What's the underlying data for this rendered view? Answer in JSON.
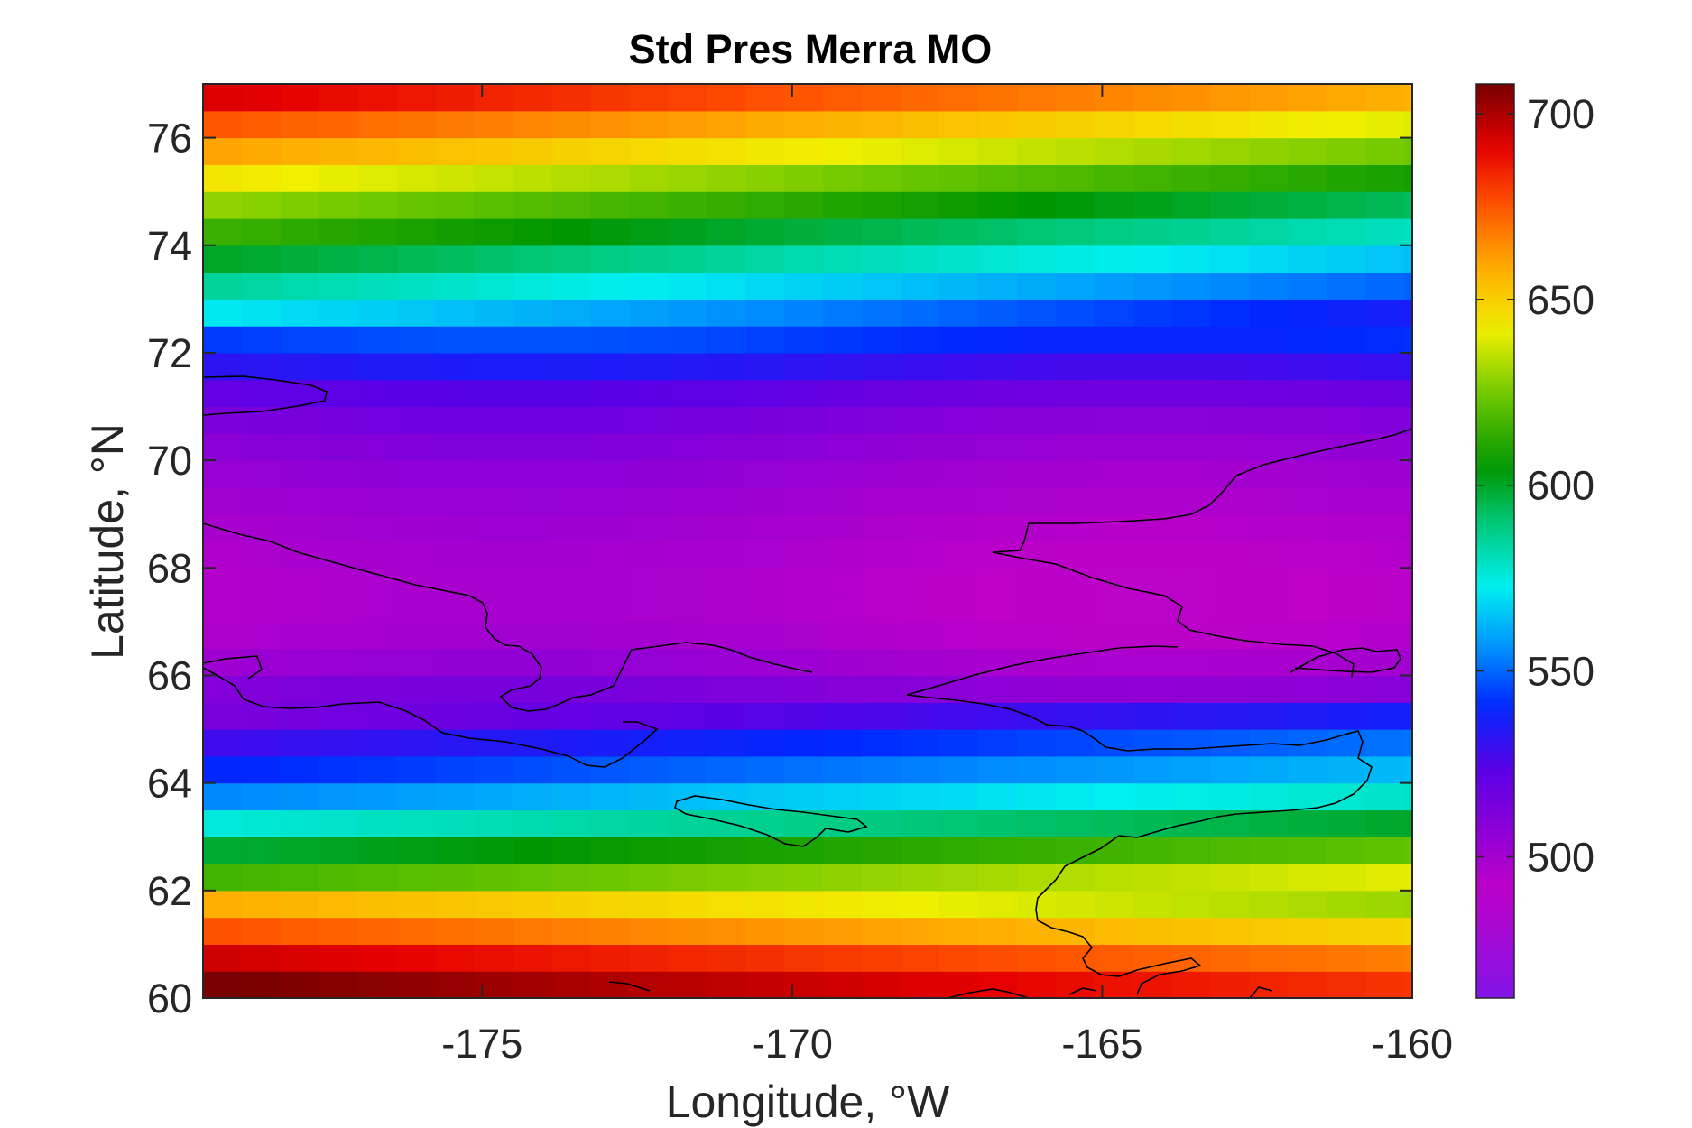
{
  "chart_data": {
    "type": "heatmap",
    "title": "Std Pres Merra MO",
    "xlabel": "Longitude, °W",
    "ylabel": "Latitude, °N",
    "xlim": [
      -179.5,
      -160
    ],
    "ylim": [
      60,
      77
    ],
    "x_ticks": [
      -175,
      -170,
      -165,
      -160
    ],
    "y_ticks": [
      60,
      62,
      64,
      66,
      68,
      70,
      72,
      74,
      76
    ],
    "x_tick_labels": [
      "-175",
      "-170",
      "-165",
      "-160"
    ],
    "y_tick_labels": [
      "60",
      "62",
      "64",
      "66",
      "68",
      "70",
      "72",
      "74",
      "76"
    ],
    "colorbar": {
      "range": [
        462,
        708
      ],
      "ticks": [
        500,
        550,
        600,
        650,
        700
      ],
      "tick_labels": [
        "500",
        "550",
        "600",
        "650",
        "700"
      ],
      "colormap": "jet-like (purple-blue-cyan-green-yellow-red-dark red)"
    },
    "grid": false,
    "cell_size_deg": {
      "lon": 0.625,
      "lat": 0.5
    },
    "latitude_profile": {
      "lat": [
        60.0,
        60.5,
        61.0,
        61.5,
        62.0,
        62.5,
        63.0,
        63.5,
        64.0,
        64.5,
        65.0,
        65.5,
        66.0,
        66.5,
        67.0,
        67.5,
        68.0,
        68.5,
        69.0,
        69.5,
        70.0,
        70.5,
        71.0,
        71.5,
        72.0,
        72.5,
        73.0,
        73.5,
        74.0,
        74.5,
        75.0,
        75.5,
        76.0,
        76.5,
        77.0
      ],
      "value": [
        700,
        690,
        672,
        652,
        636,
        620,
        600,
        575,
        558,
        545,
        535,
        515,
        505,
        498,
        495,
        494,
        495,
        497,
        499,
        502,
        505,
        510,
        515,
        525,
        538,
        548,
        560,
        575,
        590,
        605,
        618,
        635,
        650,
        665,
        685
      ]
    },
    "overlay": "coastline",
    "coastline_features": [
      "Siberian coast (Chukotka)",
      "Wrangel Island",
      "Alaska northwest coast",
      "Seward Peninsula",
      "St. Lawrence Island",
      "Yukon Delta coast"
    ]
  }
}
